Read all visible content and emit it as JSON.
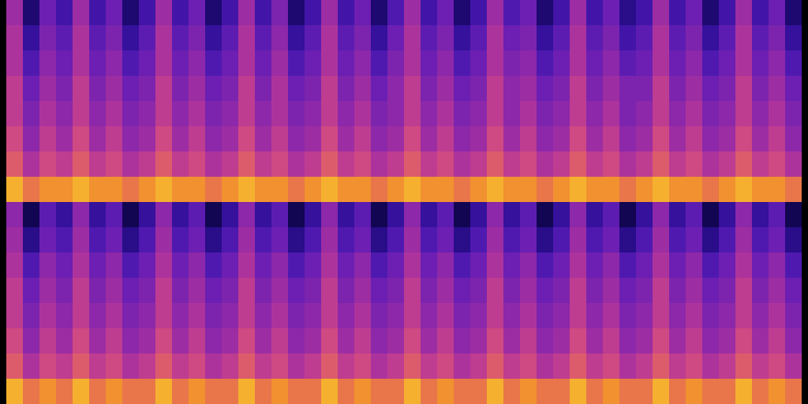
{
  "chart_data": {
    "type": "heatmap",
    "tick_labels": false,
    "zlim": [
      0,
      10
    ],
    "cells": [
      [
        [
          6,
          1.5,
          4.5,
          3,
          6,
          3,
          4.5,
          1.5,
          3,
          6,
          3,
          4.5,
          1.5,
          3,
          6,
          3,
          5,
          1.5,
          3,
          6,
          3,
          4.5,
          1.5,
          3.5,
          6,
          3,
          4.5,
          1.5,
          3,
          6,
          3.5,
          4.5,
          1.5,
          3,
          6,
          3,
          4.5,
          2,
          3,
          6,
          3,
          4.5,
          1.5,
          3,
          6,
          3,
          4.5,
          1.5
        ],
        [
          6.5,
          2.5,
          5,
          4,
          6.5,
          4,
          5,
          2.5,
          4,
          6.5,
          4,
          5,
          2.5,
          4,
          6.5,
          4,
          5.5,
          2.5,
          4,
          6.5,
          4,
          5,
          2.5,
          4.5,
          6.5,
          4,
          5,
          2.5,
          4,
          6.5,
          4.5,
          5,
          2.5,
          4,
          6.5,
          4,
          5,
          3,
          4,
          6.5,
          4,
          5,
          2.5,
          4,
          6.5,
          4,
          5,
          2.5
        ],
        [
          6.5,
          3.5,
          5.5,
          4.5,
          6.5,
          4.5,
          5.5,
          3.5,
          4.5,
          6.5,
          4.5,
          5.5,
          3.5,
          4.5,
          6.5,
          4.5,
          6,
          3.5,
          4.5,
          6.5,
          4.5,
          5.5,
          3.5,
          5,
          6.5,
          4.5,
          5.5,
          3.5,
          4.5,
          6.5,
          5,
          5.5,
          3.5,
          4.5,
          6.5,
          4.5,
          5.5,
          4,
          4.5,
          6.5,
          4.5,
          5.5,
          3.5,
          4.5,
          6.5,
          4.5,
          5.5,
          3.5
        ],
        [
          7,
          4.5,
          6,
          5,
          7,
          5,
          6,
          4.5,
          5,
          7,
          5,
          6,
          4.5,
          5,
          7,
          5,
          6.5,
          4.5,
          5,
          7,
          5,
          6,
          4.5,
          5.5,
          7,
          5,
          6,
          4.5,
          5,
          7,
          5.5,
          6,
          4.5,
          5,
          7,
          5,
          6,
          5,
          5,
          7,
          5,
          6,
          4.5,
          5,
          7,
          5,
          6,
          4.5
        ],
        [
          7,
          5,
          6.5,
          5.5,
          7,
          5.5,
          6.5,
          5,
          5.5,
          7,
          5.5,
          6.5,
          5,
          5.5,
          7,
          5.5,
          6.5,
          5,
          5.5,
          7,
          5.5,
          6.5,
          5,
          5.5,
          7,
          5.5,
          6.5,
          5,
          5.5,
          7,
          5.5,
          6.5,
          5,
          5.5,
          7,
          5.5,
          6.5,
          5,
          5.5,
          7,
          5.5,
          6.5,
          5,
          5.5,
          7,
          5.5,
          6.5,
          5
        ],
        [
          7.5,
          5.5,
          7,
          6,
          7.5,
          6,
          7,
          5.5,
          6,
          7.5,
          6,
          7,
          5.5,
          6,
          7.5,
          6,
          7,
          5.5,
          6,
          7.5,
          6,
          7,
          5.5,
          6,
          7.5,
          6,
          7,
          5.5,
          6,
          7.5,
          6,
          7,
          5.5,
          6,
          7.5,
          6,
          7,
          5.5,
          6,
          7.5,
          6,
          7,
          5.5,
          6,
          7.5,
          6,
          7,
          5.5
        ],
        [
          8,
          6.5,
          7.5,
          7,
          8,
          7,
          7.5,
          6.5,
          7,
          8,
          7,
          7.5,
          6.5,
          7,
          8,
          7,
          7.5,
          6.5,
          7,
          8,
          7,
          7.5,
          6.5,
          7,
          8,
          7,
          7.5,
          6.5,
          7,
          8,
          7,
          7.5,
          6.5,
          7,
          8,
          7,
          7.5,
          6.5,
          7,
          8,
          7,
          7.5,
          6.5,
          7,
          8,
          7,
          7.5,
          6.5
        ],
        [
          9.5,
          8.5,
          9,
          9,
          9.5,
          9,
          9,
          8.5,
          9,
          9.5,
          9,
          9,
          8.5,
          9,
          9.5,
          9,
          9,
          8.5,
          9,
          9.5,
          9,
          9,
          8.5,
          9,
          9.5,
          9,
          9,
          8.5,
          9,
          9.5,
          9,
          9,
          8.5,
          9,
          9.5,
          9,
          9,
          8.5,
          9,
          9.5,
          9,
          9,
          8.5,
          9,
          9.5,
          9,
          9,
          8.5
        ]
      ],
      [
        [
          5.5,
          1,
          4,
          2.5,
          5.5,
          2.5,
          4,
          1,
          2.5,
          5.5,
          2.5,
          4,
          1,
          2.5,
          5.5,
          2.5,
          4,
          1,
          2.5,
          5.5,
          2.5,
          4,
          1,
          2.5,
          5.5,
          2.5,
          4,
          1,
          2.5,
          5.5,
          2.5,
          4,
          1,
          2.5,
          5.5,
          2.5,
          4,
          1,
          2.5,
          5.5,
          2.5,
          4,
          1,
          2.5,
          5.5,
          2.5,
          4,
          1
        ],
        [
          6,
          2,
          4.5,
          3.5,
          6,
          3.5,
          4.5,
          2,
          3.5,
          6,
          3.5,
          4.5,
          2,
          3.5,
          6,
          3.5,
          4.5,
          2,
          3.5,
          6,
          3.5,
          4.5,
          2,
          3.5,
          6,
          3.5,
          4.5,
          2,
          3.5,
          6,
          3.5,
          4.5,
          2,
          3.5,
          6,
          3.5,
          4.5,
          2,
          3.5,
          6,
          3.5,
          4.5,
          2,
          3.5,
          6,
          3.5,
          4.5,
          2
        ],
        [
          6.5,
          3.5,
          5.5,
          4.5,
          6.5,
          4.5,
          5.5,
          3.5,
          4.5,
          6.5,
          4.5,
          5.5,
          3.5,
          4.5,
          6.5,
          4.5,
          5.5,
          3.5,
          4.5,
          6.5,
          4.5,
          5.5,
          3.5,
          4.5,
          6.5,
          4.5,
          5.5,
          3.5,
          4.5,
          6.5,
          4.5,
          5.5,
          3.5,
          4.5,
          6.5,
          4.5,
          5.5,
          3.5,
          4.5,
          6.5,
          4.5,
          5.5,
          3.5,
          4.5,
          6.5,
          4.5,
          5.5,
          3.5
        ],
        [
          7,
          4.5,
          6,
          5,
          7,
          5,
          6,
          4.5,
          5,
          7,
          5,
          6,
          4.5,
          5,
          7,
          5,
          6,
          4.5,
          5,
          7,
          5,
          6,
          4.5,
          5,
          7,
          5,
          6,
          4.5,
          5,
          7,
          5,
          6,
          4.5,
          5,
          7,
          5,
          6,
          4.5,
          5,
          7,
          5,
          6,
          4.5,
          5,
          7,
          5,
          6,
          4.5
        ],
        [
          7,
          5,
          6.5,
          5.5,
          7,
          5.5,
          6.5,
          5,
          5.5,
          7,
          5.5,
          6.5,
          5,
          5.5,
          7,
          5.5,
          6.5,
          5,
          5.5,
          7,
          5.5,
          6.5,
          5,
          5.5,
          7,
          5.5,
          6.5,
          5,
          5.5,
          7,
          5.5,
          6.5,
          5,
          5.5,
          7,
          5.5,
          6.5,
          5,
          5.5,
          7,
          5.5,
          6.5,
          5,
          5.5,
          7,
          5.5,
          6.5,
          5
        ],
        [
          7.5,
          5.5,
          7,
          6,
          7.5,
          6,
          7,
          5.5,
          6,
          7.5,
          6,
          7,
          5.5,
          6,
          7.5,
          6,
          7,
          5.5,
          6,
          7.5,
          6,
          7,
          5.5,
          6,
          7.5,
          6,
          7,
          5.5,
          6,
          7.5,
          6,
          7,
          5.5,
          6,
          7.5,
          6,
          7,
          5.5,
          6,
          7.5,
          6,
          7,
          5.5,
          6,
          7.5,
          6,
          7,
          5.5
        ],
        [
          8,
          6.5,
          7.5,
          7,
          8,
          7,
          7.5,
          6.5,
          7,
          8,
          7,
          7.5,
          6.5,
          7,
          8,
          7,
          7.5,
          6.5,
          7,
          8,
          7,
          7.5,
          6.5,
          7,
          8,
          7,
          7.5,
          6.5,
          7,
          8,
          7,
          7.5,
          6.5,
          7,
          8,
          7,
          7.5,
          6.5,
          7,
          8,
          7,
          7.5,
          6.5,
          7,
          8,
          7,
          7.5,
          6.5
        ],
        [
          9.5,
          8.5,
          9,
          8.5,
          9.5,
          8.5,
          9,
          8.5,
          8.5,
          9.5,
          8.5,
          9,
          8.5,
          8.5,
          9.5,
          8.5,
          9,
          8.5,
          8.5,
          9.5,
          8.5,
          9,
          8.5,
          8.5,
          9.5,
          8.5,
          9,
          8.5,
          8.5,
          9.5,
          8.5,
          9,
          8.5,
          8.5,
          9.5,
          8.5,
          9,
          8.5,
          8.5,
          9.5,
          8.5,
          9,
          8.5,
          8.5,
          9.5,
          8.5,
          9,
          8.5
        ]
      ]
    ]
  }
}
